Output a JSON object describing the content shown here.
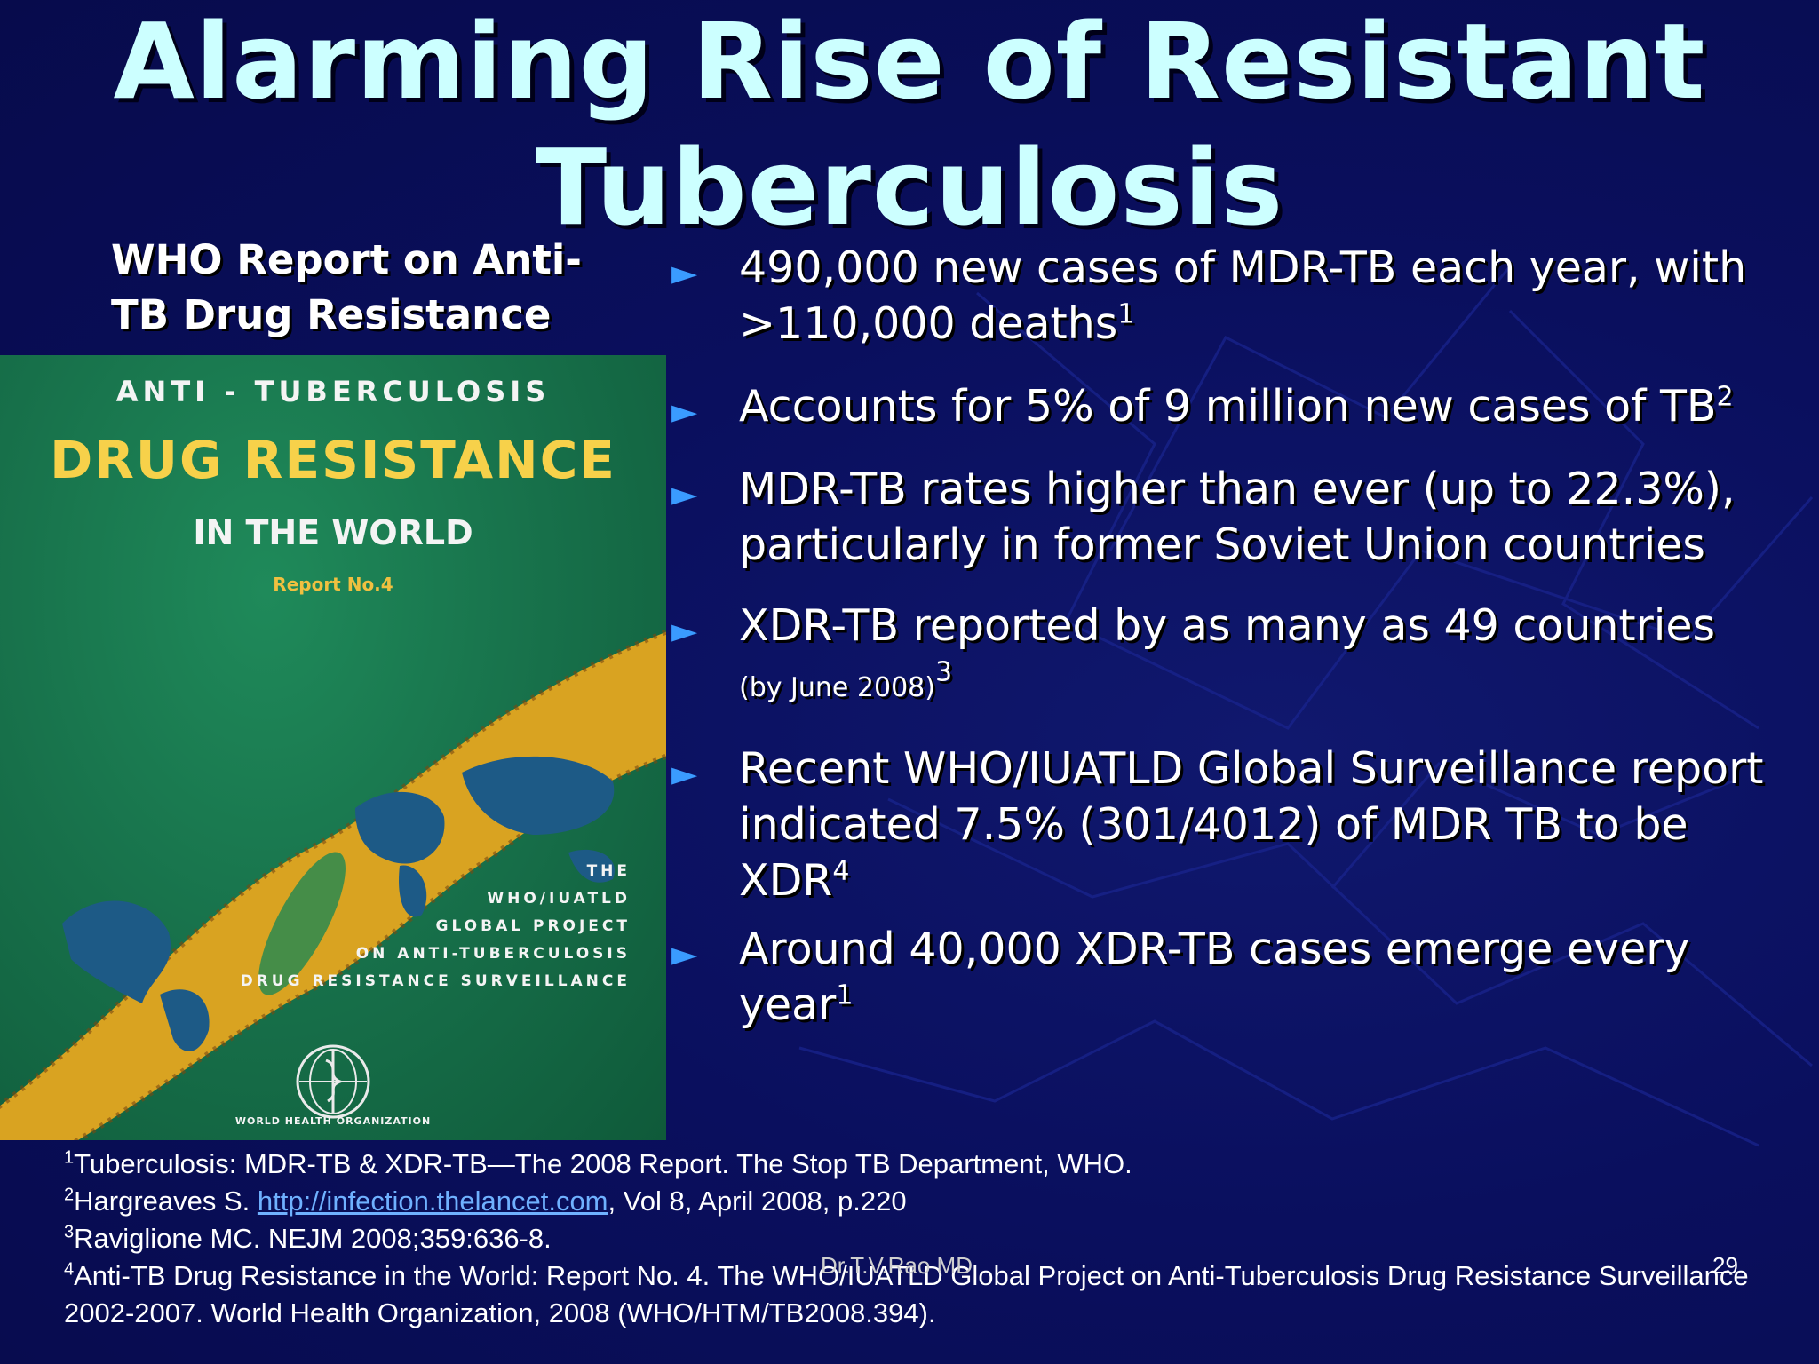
{
  "slide": {
    "title_line1": "Alarming Rise of Resistant",
    "title_line2": "Tuberculosis",
    "subhead_line1": "WHO Report on Anti-",
    "subhead_line2": "TB Drug Resistance",
    "author": "Dr.T.V.Rao MD",
    "page_number": "29"
  },
  "cover": {
    "top": "ANTI - TUBERCULOSIS",
    "main": "DRUG RESISTANCE",
    "sub": "IN THE WORLD",
    "report": "Report No.4",
    "project_lines": [
      "THE",
      "WHO/IUATLD",
      "GLOBAL PROJECT",
      "ON ANTI-TUBERCULOSIS",
      "DRUG RESISTANCE SURVEILLANCE"
    ],
    "publisher": "WORLD HEALTH ORGANIZATION"
  },
  "bullets": [
    {
      "text": "490,000 new cases of MDR-TB each year, with >110,000 deaths",
      "sup": "1"
    },
    {
      "text": "Accounts for 5% of 9 million new cases of TB",
      "sup": "2"
    },
    {
      "text": "MDR-TB rates higher than ever (up to 22.3%), particularly in former Soviet Union countries",
      "sup": ""
    },
    {
      "text": "XDR-TB reported by as many as 49 countries",
      "small": "(by June 2008)",
      "sup": "3"
    },
    {
      "text": "Recent WHO/IUATLD Global Surveillance report indicated 7.5% (301/4012) of MDR TB to be XDR",
      "sup": "4"
    },
    {
      "text": "Around 40,000 XDR-TB cases emerge every year",
      "sup": "1"
    }
  ],
  "footnotes": [
    {
      "num": "1",
      "text": "Tuberculosis: MDR-TB & XDR-TB—The 2008 Report. The Stop TB Department, WHO."
    },
    {
      "num": "2",
      "pre": "Hargreaves S. ",
      "link": "http://infection.thelancet.com",
      "post": ", Vol 8, April 2008, p.220"
    },
    {
      "num": "3",
      "text": "Raviglione MC. NEJM 2008;359:636-8."
    },
    {
      "num": "4",
      "text": "Anti-TB Drug Resistance in the World: Report No. 4. The WHO/IUATLD Global Project on Anti-Tuberculosis Drug Resistance Surveillance 2002-2007. World Health Organization, 2008 (WHO/HTM/TB2008.394)."
    }
  ],
  "colors": {
    "background": "#0a0f5e",
    "title": "#ccffff",
    "bullet_arrow": "#3a9bff",
    "cover_green": "#17704a",
    "cover_band": "#d9a321",
    "link": "#6fb1ff"
  },
  "icons": {
    "bullet": "triangle-right-icon",
    "cover_emblem": "who-emblem-icon"
  }
}
